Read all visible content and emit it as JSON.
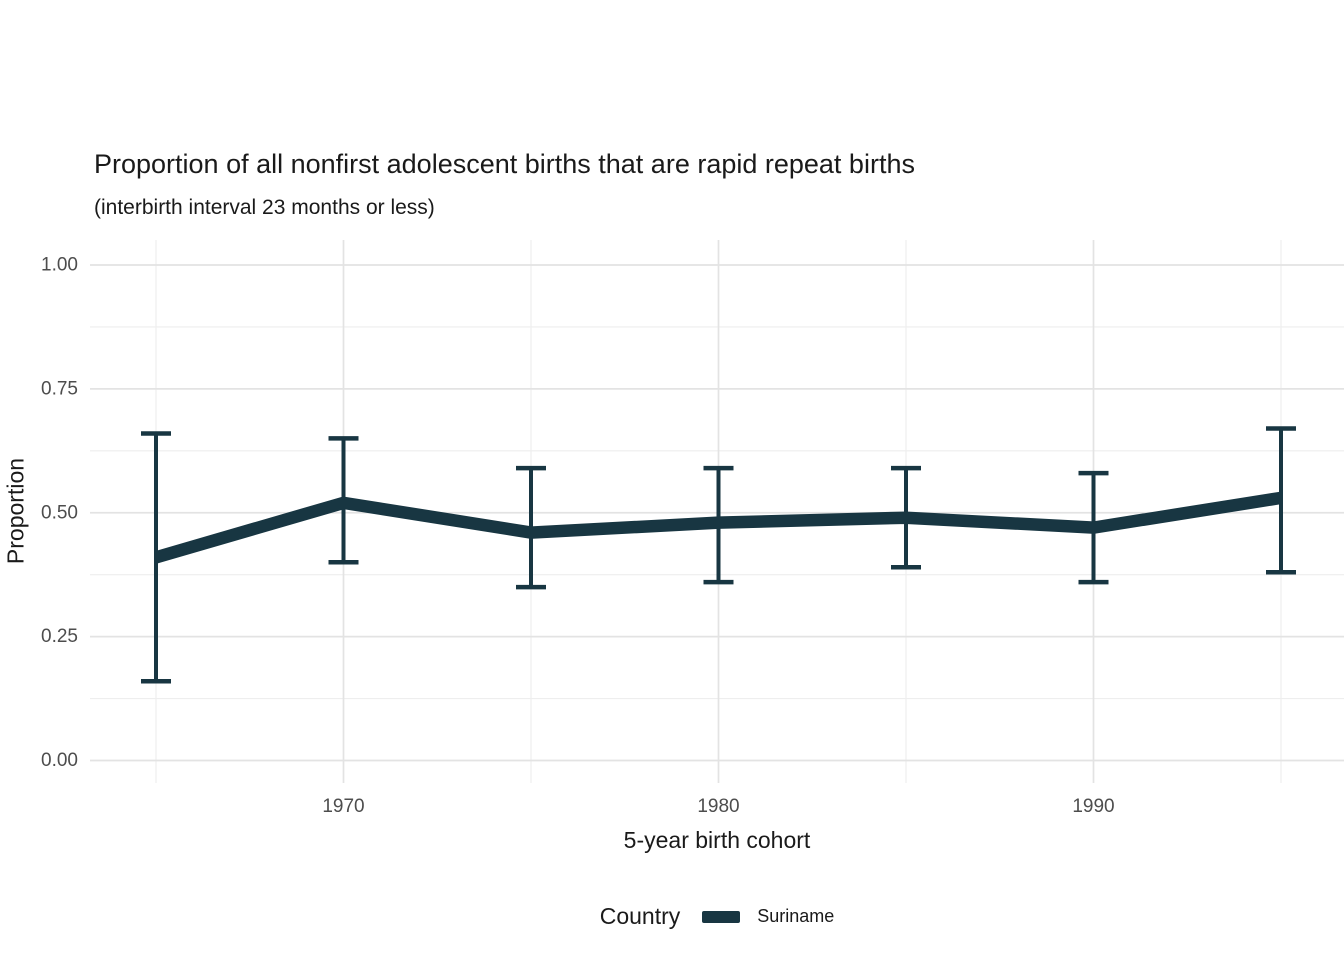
{
  "title": "Proportion of all nonfirst adolescent births that are rapid repeat births",
  "subtitle": "(interbirth interval 23 months or less)",
  "y_axis": {
    "label": "Proportion"
  },
  "x_axis": {
    "label": "5-year birth cohort"
  },
  "legend": {
    "title": "Country",
    "entries": [
      {
        "label": "Suriname",
        "color": "#183642"
      }
    ]
  },
  "colors": {
    "series": "#183642",
    "grid_major": "#e3e3e3",
    "grid_minor": "#eeeeee",
    "tick_label": "#4d4d4d",
    "text": "#1a1a1a",
    "background": "#ffffff"
  },
  "chart_data": {
    "type": "line",
    "title": "Proportion of all nonfirst adolescent births that are rapid repeat births",
    "subtitle": "(interbirth interval 23 months or less)",
    "xlabel": "5-year birth cohort",
    "ylabel": "Proportion",
    "x": [
      1965,
      1970,
      1975,
      1980,
      1985,
      1990,
      1995
    ],
    "series": [
      {
        "name": "Suriname",
        "color": "#183642",
        "values": [
          0.41,
          0.52,
          0.46,
          0.48,
          0.49,
          0.47,
          0.53
        ],
        "ci_low": [
          0.16,
          0.4,
          0.35,
          0.36,
          0.39,
          0.36,
          0.38
        ],
        "ci_high": [
          0.66,
          0.65,
          0.59,
          0.59,
          0.59,
          0.58,
          0.67
        ]
      }
    ],
    "error_bars": true,
    "ylim": [
      0.0,
      1.0
    ],
    "y_major_ticks": [
      1.0,
      0.75,
      0.5,
      0.25,
      0.0
    ],
    "y_minor_ticks": [
      0.875,
      0.625,
      0.375,
      0.125
    ],
    "y_tick_labels": [
      "1.00",
      "0.75",
      "0.50",
      "0.25",
      "0.00"
    ],
    "x_major_ticks": [
      1970,
      1980,
      1990
    ],
    "x_minor_ticks": [
      1965,
      1975,
      1985,
      1995
    ],
    "x_tick_labels": [
      "1970",
      "1980",
      "1990"
    ],
    "grid": "major+minor horizontal and vertical, no axis lines (minimal theme)",
    "legend_position": "bottom"
  }
}
